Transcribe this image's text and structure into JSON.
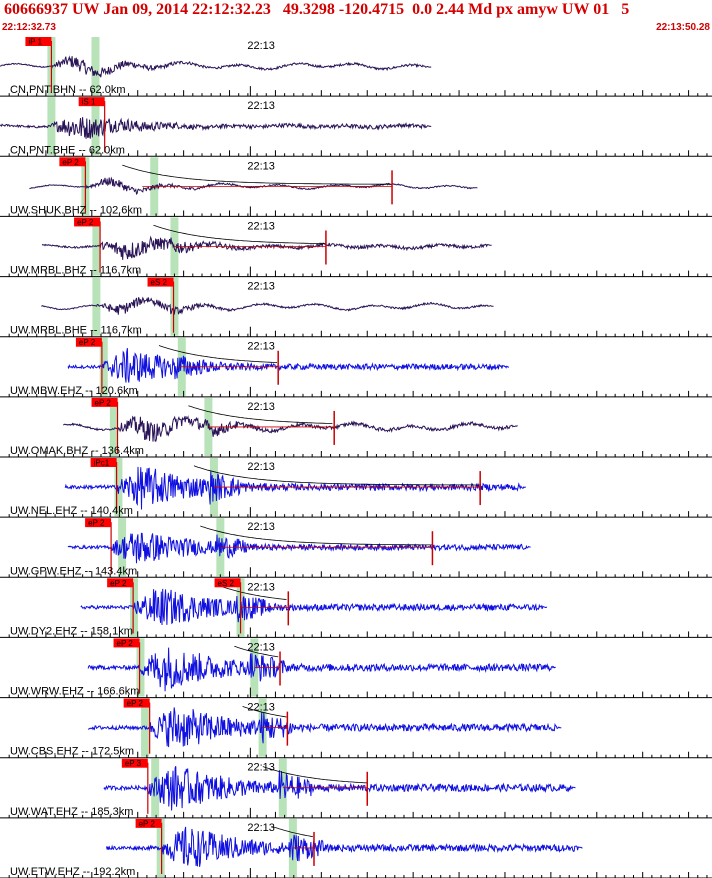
{
  "header": {
    "title": "60666937 UW Jan 09, 2014 22:12:32.23   49.3298 -120.4715  0.0 2.44 Md px amyw UW 01   5",
    "start_time": "22:12:32.73",
    "end_time": "22:13:50.28"
  },
  "colors": {
    "header": "#d40000",
    "broadband": "#2a1457",
    "short_period": "#1010e0",
    "pick_box": "#ff0000",
    "pick_line": "#cc0000",
    "predicted": "#b8e3b8"
  },
  "chart_data": {
    "type": "line",
    "title": "",
    "x_unit": "seconds after 22:12:32.73",
    "xlim": [
      0,
      77.55
    ],
    "minute_label": "22:13",
    "minute_mark_s": 27.27,
    "traces": [
      {
        "label": "CN.PNT.BHN -- 62.0km",
        "kind": "bb",
        "start": 0,
        "end": 47,
        "amp": 0.5,
        "p": 5.6,
        "s": 11.4,
        "coda": 0,
        "lp": 0.7,
        "pred": [
          5.6,
          10.4
        ],
        "picks": [
          {
            "text": "iP 1",
            "t": 5.6
          }
        ]
      },
      {
        "label": "CN.PNT.BHE -- 62.0km",
        "kind": "bb",
        "start": 0,
        "end": 47,
        "amp": 0.6,
        "p": 5.6,
        "s": 11.4,
        "coda": 0,
        "lp": 0.2,
        "pred": [
          5.6,
          10.4
        ],
        "picks": [
          {
            "text": "iS 1",
            "t": 11.4
          }
        ]
      },
      {
        "label": "UW.SHUK.BHZ -- 102.6km",
        "kind": "bb",
        "start": 3.2,
        "end": 52,
        "amp": 0.35,
        "p": 9.3,
        "s": 15.5,
        "coda": 42.7,
        "lp": 0.8,
        "pred": [
          9.3,
          16.8
        ],
        "picks": [
          {
            "text": "eP 2",
            "t": 9.3
          }
        ]
      },
      {
        "label": "UW.MRBL.BHZ -- 116.7km",
        "kind": "bb",
        "start": 4.6,
        "end": 53.6,
        "amp": 0.55,
        "p": 10.9,
        "s": 18.9,
        "coda": 35.5,
        "lp": 0.4,
        "pred": [
          10.5,
          19.0
        ],
        "picks": [
          {
            "text": "eP 2",
            "t": 10.9
          }
        ]
      },
      {
        "label": "UW.MRBL.BHE -- 116.7km",
        "kind": "bb",
        "start": 4.5,
        "end": 53.8,
        "amp": 0.45,
        "p": 10.5,
        "s": 18.9,
        "coda": 0,
        "lp": 0.8,
        "pred": [
          10.5,
          19.0
        ],
        "picks": [
          {
            "text": "eS 2",
            "t": 18.9
          }
        ]
      },
      {
        "label": "UW.MBW.EHZ -- 120.6km",
        "kind": "sp",
        "start": 7.4,
        "end": 55.5,
        "amp": 0.75,
        "p": 11.1,
        "s": 19.5,
        "coda": 30.3,
        "lp": 0,
        "pred": [
          11.3,
          19.8
        ],
        "picks": [
          {
            "text": "eP 2",
            "t": 11.1
          }
        ]
      },
      {
        "label": "UW.OMAK.BHZ -- 136.4km",
        "kind": "bb",
        "start": 6.9,
        "end": 56.4,
        "amp": 0.7,
        "p": 12.8,
        "s": 22.7,
        "coda": 36.4,
        "lp": 0.6,
        "pred": [
          12.4,
          22.7
        ],
        "picks": [
          {
            "text": "eP 2",
            "t": 12.8
          }
        ]
      },
      {
        "label": "UW.NEL.EHZ -- 140.4km",
        "kind": "sp",
        "start": 7.1,
        "end": 57.3,
        "amp": 0.9,
        "p": 12.7,
        "s": 23.3,
        "coda": 52.3,
        "lp": 0,
        "pred": [
          12.9,
          23.3
        ],
        "picks": [
          {
            "text": "iPc1",
            "t": 12.7
          }
        ]
      },
      {
        "label": "UW.GPW.EHZ -- 143.4km",
        "kind": "sp",
        "start": 7.4,
        "end": 57.8,
        "amp": 0.75,
        "p": 12.1,
        "s": 24.0,
        "coda": 47.1,
        "lp": 0,
        "pred": [
          13.3,
          24.0
        ],
        "picks": [
          {
            "text": "eP 2",
            "t": 12.1
          }
        ]
      },
      {
        "label": "UW.DY2.EHZ -- 158.1km",
        "kind": "sp",
        "start": 8.8,
        "end": 59.6,
        "amp": 0.85,
        "p": 14.5,
        "s": 26.2,
        "coda": 31.4,
        "lp": 0,
        "pred": [
          14.6,
          26.2
        ],
        "picks": [
          {
            "text": "eP 2",
            "t": 14.5
          },
          {
            "text": "eS 2",
            "t": 26.2
          }
        ]
      },
      {
        "label": "UW.WRW.EHZ -- 166.6km",
        "kind": "sp",
        "start": 9.6,
        "end": 60.6,
        "amp": 0.95,
        "p": 15.2,
        "s": 27.7,
        "coda": 30.5,
        "lp": 0,
        "pred": [
          15.3,
          27.7
        ],
        "picks": [
          {
            "text": "eP 2",
            "t": 15.2
          }
        ]
      },
      {
        "label": "UW.CBS.EHZ -- 172.5km",
        "kind": "sp",
        "start": 9.6,
        "end": 61.2,
        "amp": 0.95,
        "p": 16.3,
        "s": 28.6,
        "coda": 31.3,
        "lp": 0,
        "pred": [
          15.8,
          28.6
        ],
        "picks": [
          {
            "text": "eP 2",
            "t": 16.3
          }
        ]
      },
      {
        "label": "UW.WAT.EHZ -- 185.3km",
        "kind": "sp",
        "start": 11.3,
        "end": 62.7,
        "amp": 0.95,
        "p": 16.1,
        "s": 30.8,
        "coda": 40.0,
        "lp": 0,
        "pred": [
          16.9,
          30.8
        ],
        "picks": [
          {
            "text": "eP 3",
            "t": 16.1
          }
        ]
      },
      {
        "label": "UW.ETW.EHZ -- 192.2km",
        "kind": "sp",
        "start": 11.6,
        "end": 63.5,
        "amp": 0.9,
        "p": 17.6,
        "s": 31.9,
        "coda": 34.2,
        "lp": 0,
        "pred": [
          17.5,
          31.9
        ],
        "picks": [
          {
            "text": "eP 2",
            "t": 17.6
          }
        ]
      }
    ]
  }
}
